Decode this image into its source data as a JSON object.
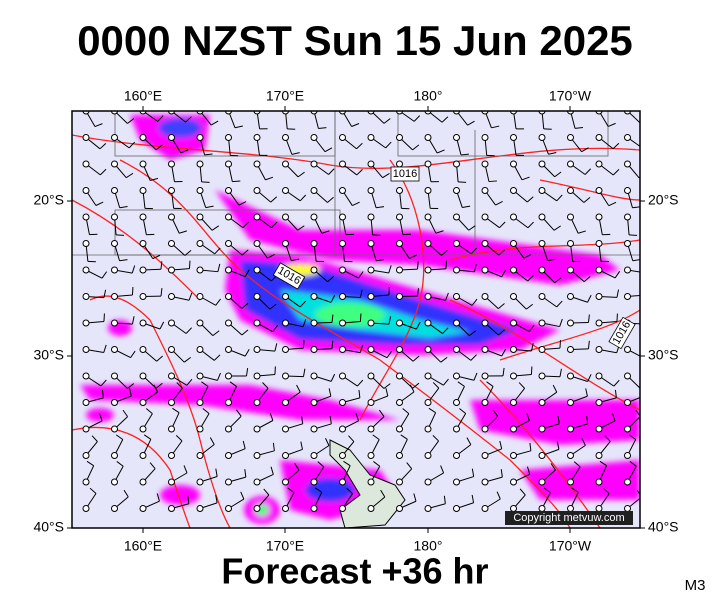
{
  "title": "0000 NZST Sun 15 Jun 2025",
  "map": {
    "top_labels": [
      "160°E",
      "170°E",
      "180°",
      "170°W"
    ],
    "bottom_labels": [
      "160°E",
      "170°E",
      "180°",
      "170°W"
    ],
    "left_labels": [
      "20°S",
      "30°S",
      "40°S"
    ],
    "right_labels": [
      "20°S",
      "30°S",
      "40°S"
    ],
    "isobar_labels": [
      "1016",
      "1016",
      "1016"
    ],
    "copyright": "Copyright metvuw.com"
  },
  "footer": {
    "forecast": "Forecast +36 hr",
    "model": "M3"
  }
}
